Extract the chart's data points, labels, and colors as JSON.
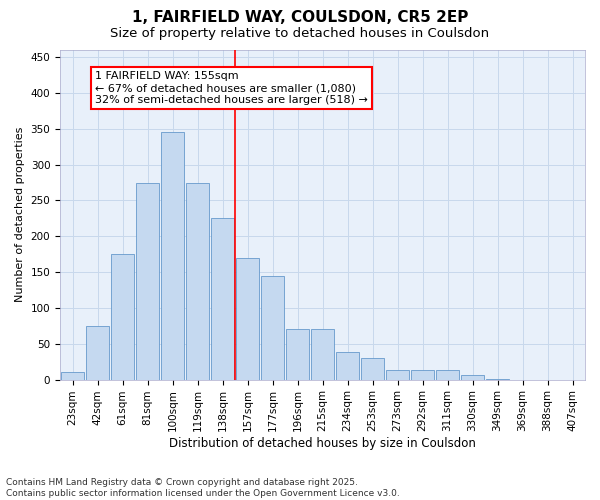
{
  "title": "1, FAIRFIELD WAY, COULSDON, CR5 2EP",
  "subtitle": "Size of property relative to detached houses in Coulsdon",
  "xlabel": "Distribution of detached houses by size in Coulsdon",
  "ylabel": "Number of detached properties",
  "categories": [
    "23sqm",
    "42sqm",
    "61sqm",
    "81sqm",
    "100sqm",
    "119sqm",
    "138sqm",
    "157sqm",
    "177sqm",
    "196sqm",
    "215sqm",
    "234sqm",
    "253sqm",
    "273sqm",
    "292sqm",
    "311sqm",
    "330sqm",
    "349sqm",
    "369sqm",
    "388sqm",
    "407sqm"
  ],
  "values": [
    10,
    75,
    175,
    275,
    345,
    275,
    225,
    170,
    145,
    70,
    70,
    38,
    30,
    13,
    13,
    13,
    7,
    1,
    0,
    0,
    0
  ],
  "bar_color": "#c5d9f0",
  "bar_edge_color": "#6699cc",
  "grid_color": "#c8d8ec",
  "background_color": "#e8f0fa",
  "vline_x_index": 6.5,
  "vline_color": "red",
  "annotation_text": "1 FAIRFIELD WAY: 155sqm\n← 67% of detached houses are smaller (1,080)\n32% of semi-detached houses are larger (518) →",
  "annotation_box_color": "white",
  "annotation_box_edge_color": "red",
  "ylim": [
    0,
    460
  ],
  "yticks": [
    0,
    50,
    100,
    150,
    200,
    250,
    300,
    350,
    400,
    450
  ],
  "footer_text": "Contains HM Land Registry data © Crown copyright and database right 2025.\nContains public sector information licensed under the Open Government Licence v3.0.",
  "title_fontsize": 11,
  "subtitle_fontsize": 9.5,
  "xlabel_fontsize": 8.5,
  "ylabel_fontsize": 8,
  "tick_fontsize": 7.5,
  "annotation_fontsize": 8,
  "footer_fontsize": 6.5
}
